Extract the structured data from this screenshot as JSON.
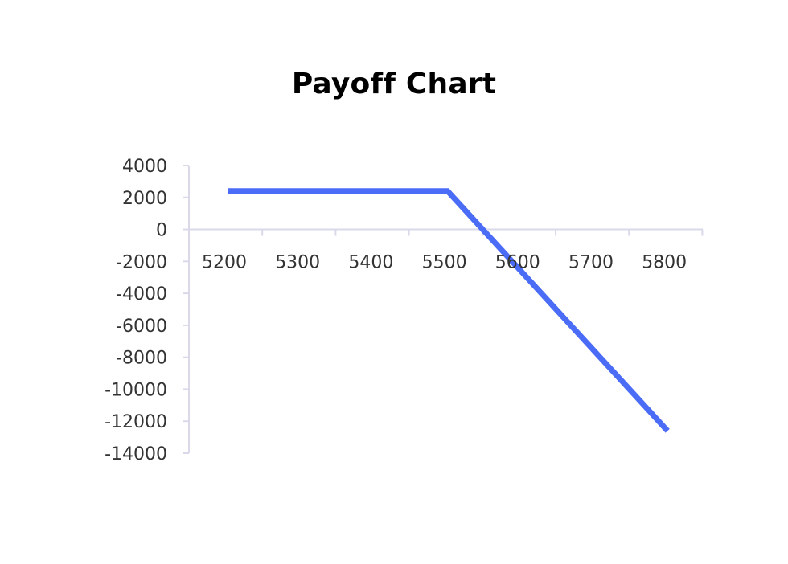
{
  "chart_data": {
    "type": "line",
    "title": "Payoff Chart",
    "xlabel": "",
    "ylabel": "",
    "x": [
      5200,
      5300,
      5400,
      5500,
      5600,
      5700,
      5800
    ],
    "x_tick_labels": [
      "5200",
      "5300",
      "5400",
      "5500",
      "5600",
      "5700",
      "5800"
    ],
    "xlim": [
      5150,
      5850
    ],
    "ylim": [
      -14000,
      4000
    ],
    "y_ticks": [
      4000,
      2000,
      0,
      -2000,
      -4000,
      -6000,
      -8000,
      -10000,
      -12000,
      -14000
    ],
    "y_tick_labels": [
      "4000",
      "2000",
      "0",
      "-2000",
      "-4000",
      "-6000",
      "-8000",
      "-10000",
      "-12000",
      "-14000"
    ],
    "series": [
      {
        "x": [
          5200,
          5300,
          5400,
          5500,
          5600,
          5700,
          5800
        ],
        "values": [
          2400,
          2400,
          2400,
          2400,
          -2600,
          -7600,
          -12600
        ],
        "color": "#4a6cf7"
      }
    ],
    "grid": false,
    "legend": "none",
    "colors": {
      "line": "#4a6cf7",
      "axis": "#d9d9ea",
      "tick_text": "#333333"
    }
  }
}
